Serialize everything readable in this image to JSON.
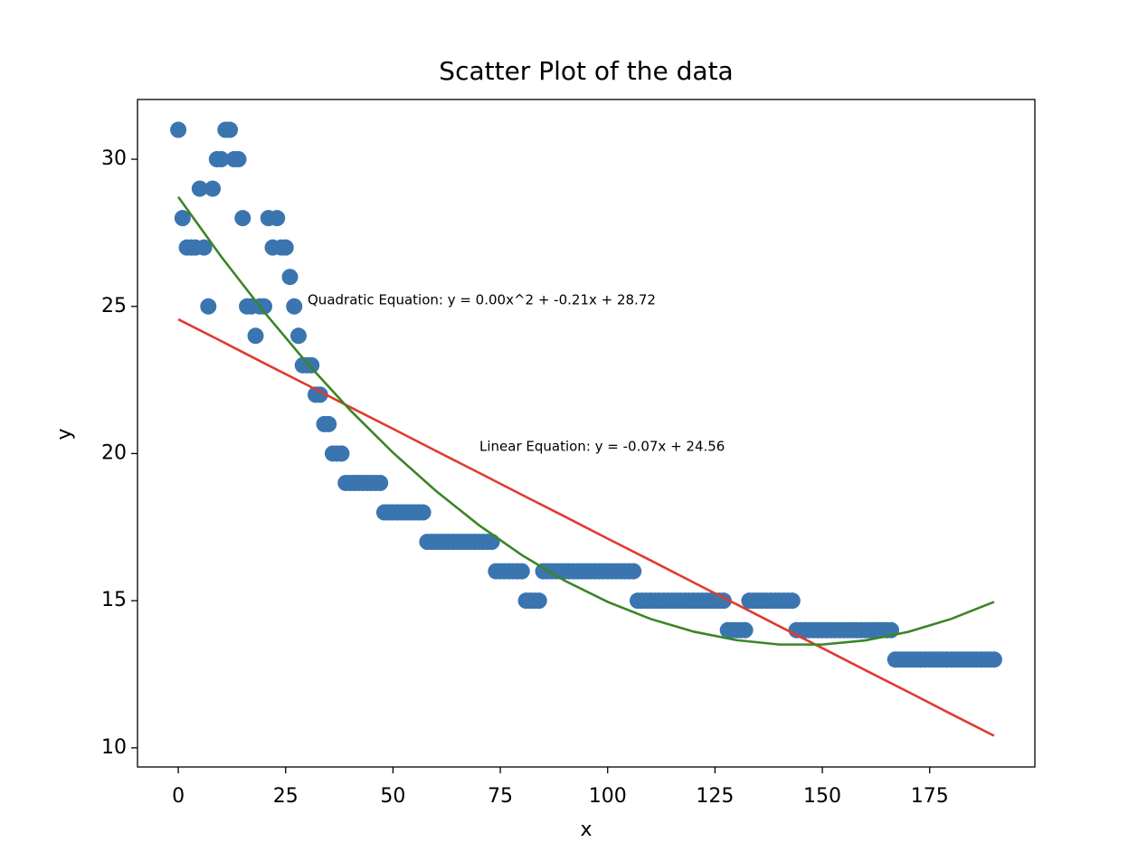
{
  "chart_data": {
    "type": "scatter",
    "title": "Scatter Plot of the data",
    "x_label": "x",
    "y_label": "y",
    "annotations": [
      "Quadratic Equation: y = 0.00x^2 + -0.21x + 28.72",
      "Linear Equation: y = -0.07x + 24.56"
    ],
    "xlim": [
      -9.5,
      199.5
    ],
    "ylim": [
      9.35,
      32.03
    ],
    "xticks": [
      0,
      25,
      50,
      75,
      100,
      125,
      150,
      175
    ],
    "yticks": [
      10,
      15,
      20,
      25,
      30
    ],
    "grid": false,
    "series": [
      {
        "type": "scatter",
        "color": "#3a75b0",
        "x": [
          0,
          1,
          2,
          3,
          4,
          5,
          6,
          7,
          8,
          9,
          10,
          11,
          12,
          13,
          14,
          15,
          16,
          17,
          18,
          19,
          20,
          21,
          22,
          23,
          24,
          25,
          26,
          27,
          28,
          29,
          30,
          31,
          32,
          33,
          34,
          35,
          36,
          37,
          38,
          39,
          40,
          41,
          42,
          43,
          44,
          45,
          46,
          47,
          48,
          49,
          50,
          51,
          52,
          53,
          54,
          55,
          56,
          57,
          58,
          59,
          60,
          61,
          62,
          63,
          64,
          65,
          66,
          67,
          68,
          69,
          70,
          71,
          72,
          73,
          74,
          75,
          76,
          77,
          78,
          79,
          80,
          81,
          82,
          83,
          84,
          85,
          86,
          87,
          88,
          89,
          90,
          91,
          92,
          93,
          94,
          95,
          96,
          97,
          98,
          99,
          100,
          101,
          102,
          103,
          104,
          105,
          106,
          107,
          108,
          109,
          110,
          111,
          112,
          113,
          114,
          115,
          116,
          117,
          118,
          119,
          120,
          121,
          122,
          123,
          124,
          125,
          126,
          127,
          128,
          129,
          130,
          131,
          132,
          133,
          134,
          135,
          136,
          137,
          138,
          139,
          140,
          141,
          142,
          143,
          144,
          145,
          146,
          147,
          148,
          149,
          150,
          151,
          152,
          153,
          154,
          155,
          156,
          157,
          158,
          159,
          160,
          161,
          162,
          163,
          164,
          165,
          166,
          167,
          168,
          169,
          170,
          171,
          172,
          173,
          174,
          175,
          176,
          177,
          178,
          179,
          180,
          181,
          182,
          183,
          184,
          185,
          186,
          187,
          188,
          189,
          190
        ],
        "values": [
          31,
          28,
          27,
          27,
          27,
          29,
          27,
          25,
          29,
          30,
          30,
          31,
          31,
          30,
          30,
          28,
          25,
          25,
          24,
          25,
          25,
          28,
          27,
          28,
          27,
          27,
          26,
          25,
          24,
          23,
          23,
          23,
          22,
          22,
          21,
          21,
          20,
          20,
          20,
          19,
          19,
          19,
          19,
          19,
          19,
          19,
          19,
          19,
          18,
          18,
          18,
          18,
          18,
          18,
          18,
          18,
          18,
          18,
          17,
          17,
          17,
          17,
          17,
          17,
          17,
          17,
          17,
          17,
          17,
          17,
          17,
          17,
          17,
          17,
          16,
          16,
          16,
          16,
          16,
          16,
          16,
          15,
          15,
          15,
          15,
          16,
          16,
          16,
          16,
          16,
          16,
          16,
          16,
          16,
          16,
          16,
          16,
          16,
          16,
          16,
          16,
          16,
          16,
          16,
          16,
          16,
          16,
          15,
          15,
          15,
          15,
          15,
          15,
          15,
          15,
          15,
          15,
          15,
          15,
          15,
          15,
          15,
          15,
          15,
          15,
          15,
          15,
          15,
          14,
          14,
          14,
          14,
          14,
          15,
          15,
          15,
          15,
          15,
          15,
          15,
          15,
          15,
          15,
          15,
          14,
          14,
          14,
          14,
          14,
          14,
          14,
          14,
          14,
          14,
          14,
          14,
          14,
          14,
          14,
          14,
          14,
          14,
          14,
          14,
          14,
          14,
          14,
          13,
          13,
          13,
          13,
          13,
          13,
          13,
          13,
          13,
          13,
          13,
          13,
          13,
          13,
          13,
          13,
          13,
          13,
          13,
          13,
          13,
          13,
          13,
          13
        ]
      },
      {
        "type": "line",
        "color": "#e03a2f",
        "x": [
          0,
          10,
          20,
          30,
          40,
          50,
          60,
          70,
          80,
          90,
          100,
          110,
          120,
          130,
          140,
          150,
          160,
          170,
          180,
          190
        ],
        "values": [
          24.56,
          23.82,
          23.07,
          22.33,
          21.58,
          20.84,
          20.09,
          19.35,
          18.6,
          17.86,
          17.11,
          16.37,
          15.62,
          14.88,
          14.13,
          13.39,
          12.64,
          11.9,
          11.15,
          10.41
        ]
      },
      {
        "type": "line",
        "color": "#3b8526",
        "x": [
          0,
          10,
          20,
          30,
          40,
          50,
          60,
          70,
          80,
          90,
          100,
          110,
          120,
          130,
          140,
          150,
          160,
          170,
          180,
          190
        ],
        "values": [
          28.72,
          26.69,
          24.81,
          23.07,
          21.48,
          20.03,
          18.73,
          17.57,
          16.55,
          15.68,
          14.96,
          14.38,
          13.95,
          13.66,
          13.51,
          13.51,
          13.65,
          13.94,
          14.38,
          14.96
        ]
      }
    ]
  }
}
